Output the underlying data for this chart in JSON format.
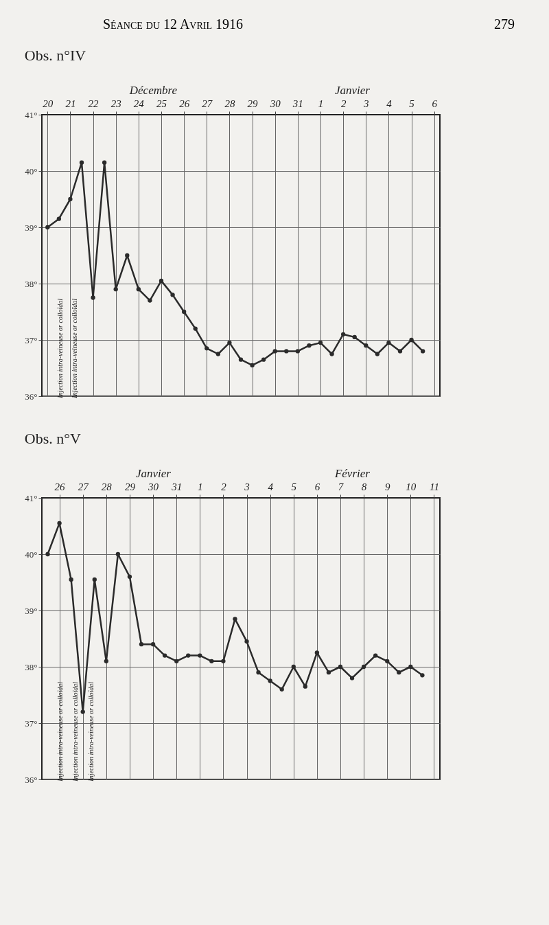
{
  "chart_data": [
    {
      "type": "other",
      "title": "Séance du 12 Avril 1916",
      "annotations": [
        "279"
      ]
    },
    {
      "type": "line",
      "title": "Obs. n°IV",
      "annotations": [
        "Injection intra-veineuse or colloïdal",
        "Injection intra-veineuse or colloïdal",
        "Décembre",
        "Janvier"
      ],
      "categories": [
        "20",
        null,
        "21",
        null,
        "22",
        null,
        "23",
        null,
        "24",
        null,
        "25",
        null,
        "26",
        null,
        "27",
        null,
        "28",
        null,
        "29",
        null,
        "30",
        null,
        "31",
        null,
        "1",
        null,
        "2",
        null,
        "3",
        null,
        "4",
        null,
        "5",
        null,
        "6"
      ],
      "series": [
        {
          "color": "#2b2b2b",
          "values": [
            39.0,
            39.15,
            39.5,
            40.15,
            37.75,
            40.15,
            37.9,
            38.5,
            37.9,
            37.7,
            38.05,
            37.8,
            37.5,
            37.2,
            36.85,
            36.75,
            36.95,
            36.65,
            36.55,
            36.65,
            36.8,
            36.8,
            36.8,
            36.9,
            36.95,
            36.75,
            37.1,
            37.05,
            36.9,
            36.75,
            36.95,
            36.8,
            37.0,
            36.8,
            null
          ]
        }
      ],
      "ylim": [
        36,
        41
      ],
      "yticks": [
        {
          "value": 36,
          "label": "36°"
        },
        {
          "value": 37,
          "label": "37°"
        },
        {
          "value": 38,
          "label": "38°"
        },
        {
          "value": 39,
          "label": "39°"
        },
        {
          "value": 40,
          "label": "40°"
        },
        {
          "value": 41,
          "label": "41°"
        }
      ],
      "grid": true,
      "marker": "circle",
      "line_style": "solid"
    },
    {
      "type": "line",
      "title": "Obs. n°V",
      "annotations": [
        "Injection intra-veineuse or colloïdal",
        "Injection intra-veineuse or colloïdal",
        "Injection intra-veineuse or colloïdal",
        "Janvier",
        "Février"
      ],
      "categories": [
        null,
        "26",
        null,
        "27",
        null,
        "28",
        null,
        "29",
        null,
        "30",
        null,
        "31",
        null,
        "1",
        null,
        "2",
        null,
        "3",
        null,
        "4",
        null,
        "5",
        null,
        "6",
        null,
        "7",
        null,
        "8",
        null,
        "9",
        null,
        "10",
        null,
        "11"
      ],
      "series": [
        {
          "color": "#2b2b2b",
          "values": [
            40.0,
            40.55,
            39.55,
            37.2,
            39.55,
            38.1,
            40.0,
            39.6,
            38.4,
            38.4,
            38.2,
            38.1,
            38.2,
            38.2,
            38.1,
            38.1,
            38.85,
            38.45,
            37.9,
            37.75,
            37.6,
            38.0,
            37.65,
            38.25,
            37.9,
            38.0,
            37.8,
            38.0,
            38.2,
            38.1,
            37.9,
            38.0,
            37.85,
            null
          ]
        }
      ],
      "ylim": [
        36,
        41
      ],
      "yticks": [
        {
          "value": 36,
          "label": "36°"
        },
        {
          "value": 37,
          "label": "37°"
        },
        {
          "value": 38,
          "label": "38°"
        },
        {
          "value": 39,
          "label": "39°"
        },
        {
          "value": 40,
          "label": "40°"
        },
        {
          "value": 41,
          "label": "41°"
        }
      ],
      "grid": true,
      "marker": "circle",
      "line_style": "solid"
    }
  ]
}
